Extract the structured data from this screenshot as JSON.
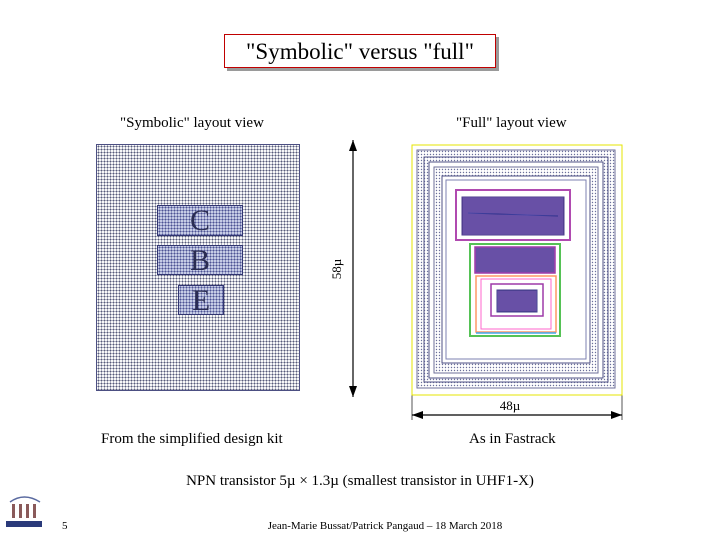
{
  "slide": {
    "title": "\"Symbolic\" versus \"full\"",
    "symbolic_caption": "\"Symbolic\" layout view",
    "full_caption": "\"Full\" layout view",
    "symbolic_regions": [
      "C",
      "B",
      "E"
    ],
    "height_dimension": "58µ",
    "width_dimension": "48µ",
    "symbolic_source": "From the simplified design kit",
    "full_source": "As in Fastrack",
    "description": "NPN transistor 5µ × 1.3µ (smallest transistor in UHF1-X)",
    "page_number": "5",
    "footer": "Jean-Marie Bussat/Patrick Pangaud – 18 March 2018"
  },
  "colors": {
    "title_border": "#c00000",
    "symbolic_fill": "#c6cce6",
    "dimension_line": "#000000",
    "full_outline": "#e6e600"
  },
  "icons": {
    "logo": "institute-logo-icon"
  }
}
